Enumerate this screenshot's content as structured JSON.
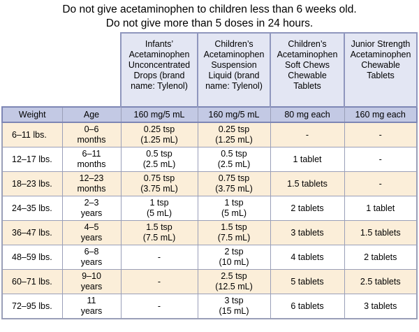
{
  "warnings": [
    "Do not give acetaminophen to children less than 6 weeks old.",
    "Do not give more than 5 doses in 24 hours."
  ],
  "products": [
    [
      "Infants’",
      "Acetaminophen",
      "Unconcentrated",
      "Drops (brand",
      "name: Tylenol)"
    ],
    [
      "Children’s",
      "Acetaminophen",
      "Suspension",
      "Liquid (brand",
      "name: Tylenol)"
    ],
    [
      "Children’s",
      "Acetaminophen",
      "Soft Chews",
      "Chewable",
      "Tablets"
    ],
    [
      "Junior Strength",
      "Acetaminophen",
      "Chewable",
      "Tablets"
    ]
  ],
  "columns": [
    "Weight",
    "Age",
    "160 mg/5 mL",
    "160 mg/5 mL",
    "80 mg each",
    "160 mg each"
  ],
  "rows": [
    {
      "weight": "6–11 lbs.",
      "age": [
        "0–6",
        "months"
      ],
      "drops": [
        "0.25 tsp",
        "(1.25 mL)"
      ],
      "liquid": [
        "0.25 tsp",
        "(1.25 mL)"
      ],
      "soft_chews": [
        "-"
      ],
      "junior": [
        "-"
      ]
    },
    {
      "weight": "12–17 lbs.",
      "age": [
        "6–11",
        "months"
      ],
      "drops": [
        "0.5 tsp",
        "(2.5 mL)"
      ],
      "liquid": [
        "0.5 tsp",
        "(2.5 mL)"
      ],
      "soft_chews": [
        "1 tablet"
      ],
      "junior": [
        "-"
      ]
    },
    {
      "weight": "18–23 lbs.",
      "age": [
        "12–23",
        "months"
      ],
      "drops": [
        "0.75 tsp",
        "(3.75 mL)"
      ],
      "liquid": [
        "0.75 tsp",
        "(3.75 mL)"
      ],
      "soft_chews": [
        "1.5 tablets"
      ],
      "junior": [
        "-"
      ]
    },
    {
      "weight": "24–35 lbs.",
      "age": [
        "2–3",
        "years"
      ],
      "drops": [
        "1 tsp",
        "(5 mL)"
      ],
      "liquid": [
        "1 tsp",
        "(5 mL)"
      ],
      "soft_chews": [
        "2 tablets"
      ],
      "junior": [
        "1 tablet"
      ]
    },
    {
      "weight": "36–47 lbs.",
      "age": [
        "4–5",
        "years"
      ],
      "drops": [
        "1.5 tsp",
        "(7.5 mL)"
      ],
      "liquid": [
        "1.5 tsp",
        "(7.5 mL)"
      ],
      "soft_chews": [
        "3 tablets"
      ],
      "junior": [
        "1.5 tablets"
      ]
    },
    {
      "weight": "48–59 lbs.",
      "age": [
        "6–8",
        "years"
      ],
      "drops": [
        "-"
      ],
      "liquid": [
        "2 tsp",
        "(10 mL)"
      ],
      "soft_chews": [
        "4 tablets"
      ],
      "junior": [
        "2 tablets"
      ]
    },
    {
      "weight": "60–71 lbs.",
      "age": [
        "9–10",
        "years"
      ],
      "drops": [
        "-"
      ],
      "liquid": [
        "2.5 tsp",
        "(12.5 mL)"
      ],
      "soft_chews": [
        "5 tablets"
      ],
      "junior": [
        "2.5 tablets"
      ]
    },
    {
      "weight": "72–95 lbs.",
      "age": [
        "11",
        "years"
      ],
      "drops": [
        "-"
      ],
      "liquid": [
        "3 tsp",
        "(15 mL)"
      ],
      "soft_chews": [
        "6 tablets"
      ],
      "junior": [
        "3 tablets"
      ]
    }
  ]
}
